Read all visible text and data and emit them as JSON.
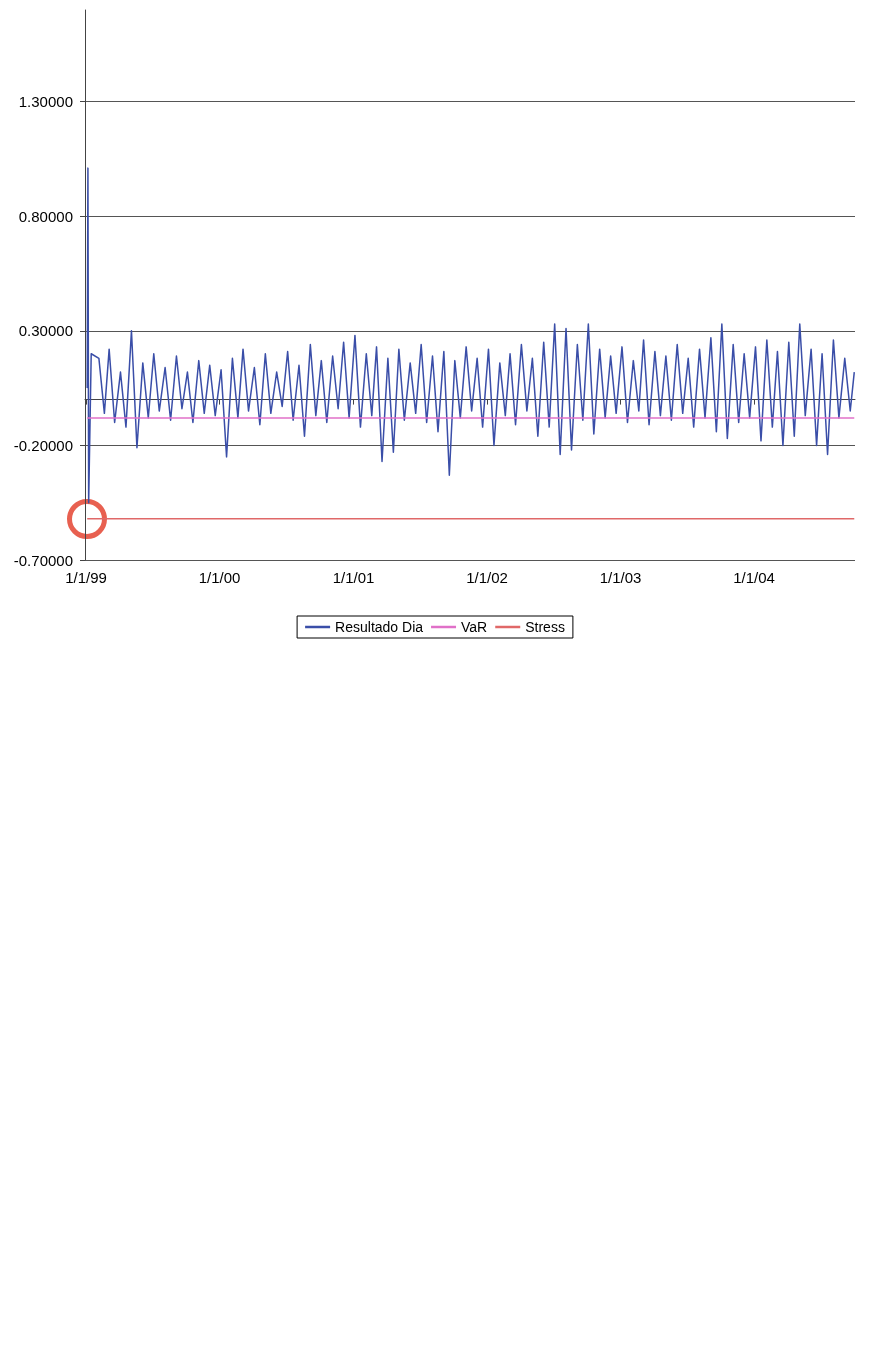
{
  "chart_data": {
    "type": "line",
    "xlim": [
      "1998-12-29",
      "2004-10-03"
    ],
    "xticks": [
      {
        "value": "1999-01-01",
        "label": "1/1/99"
      },
      {
        "value": "2000-01-01",
        "label": "1/1/00"
      },
      {
        "value": "2001-01-01",
        "label": "1/1/01"
      },
      {
        "value": "2002-01-01",
        "label": "1/1/02"
      },
      {
        "value": "2003-01-01",
        "label": "1/1/03"
      },
      {
        "value": "2004-01-01",
        "label": "1/1/04"
      }
    ],
    "ylim": [
      -0.7,
      1.7
    ],
    "yticks": [
      {
        "value": -0.7,
        "label": "-0.70000"
      },
      {
        "value": -0.2,
        "label": "-0.20000"
      },
      {
        "value": 0.3,
        "label": "0.30000"
      },
      {
        "value": 0.8,
        "label": "0.80000"
      },
      {
        "value": 1.3,
        "label": "1.30000"
      }
    ],
    "grid": "y",
    "legend": "bottom",
    "series": [
      {
        "name": "Resultado Dia",
        "color": "#3a4ea8",
        "x": [
          "1999-01-04",
          "1999-01-06",
          "1999-01-08",
          "1999-01-15",
          "1999-02-05",
          "1999-02-20",
          "1999-03-05",
          "1999-03-20",
          "1999-04-05",
          "1999-04-20",
          "1999-05-05",
          "1999-05-20",
          "1999-06-05",
          "1999-06-20",
          "1999-07-05",
          "1999-07-20",
          "1999-08-05",
          "1999-08-20",
          "1999-09-05",
          "1999-09-20",
          "1999-10-05",
          "1999-10-20",
          "1999-11-05",
          "1999-11-20",
          "1999-12-05",
          "1999-12-20",
          "2000-01-05",
          "2000-01-20",
          "2000-02-05",
          "2000-02-20",
          "2000-03-05",
          "2000-03-20",
          "2000-04-05",
          "2000-04-20",
          "2000-05-05",
          "2000-05-20",
          "2000-06-05",
          "2000-06-20",
          "2000-07-05",
          "2000-07-20",
          "2000-08-05",
          "2000-08-20",
          "2000-09-05",
          "2000-09-20",
          "2000-10-05",
          "2000-10-20",
          "2000-11-05",
          "2000-11-20",
          "2000-12-05",
          "2000-12-20",
          "2001-01-05",
          "2001-01-20",
          "2001-02-05",
          "2001-02-20",
          "2001-03-05",
          "2001-03-20",
          "2001-04-05",
          "2001-04-20",
          "2001-05-05",
          "2001-05-20",
          "2001-06-05",
          "2001-06-20",
          "2001-07-05",
          "2001-07-20",
          "2001-08-05",
          "2001-08-20",
          "2001-09-05",
          "2001-09-20",
          "2001-10-05",
          "2001-10-20",
          "2001-11-05",
          "2001-11-20",
          "2001-12-05",
          "2001-12-20",
          "2002-01-05",
          "2002-01-20",
          "2002-02-05",
          "2002-02-20",
          "2002-03-05",
          "2002-03-20",
          "2002-04-05",
          "2002-04-20",
          "2002-05-05",
          "2002-05-20",
          "2002-06-05",
          "2002-06-20",
          "2002-07-05",
          "2002-07-20",
          "2002-08-05",
          "2002-08-20",
          "2002-09-05",
          "2002-09-20",
          "2002-10-05",
          "2002-10-20",
          "2002-11-05",
          "2002-11-20",
          "2002-12-05",
          "2002-12-20",
          "2003-01-05",
          "2003-01-20",
          "2003-02-05",
          "2003-02-20",
          "2003-03-05",
          "2003-03-20",
          "2003-04-05",
          "2003-04-20",
          "2003-05-05",
          "2003-05-20",
          "2003-06-05",
          "2003-06-20",
          "2003-07-05",
          "2003-07-20",
          "2003-08-05",
          "2003-08-20",
          "2003-09-05",
          "2003-09-20",
          "2003-10-05",
          "2003-10-20",
          "2003-11-05",
          "2003-11-20",
          "2003-12-05",
          "2003-12-20",
          "2004-01-05",
          "2004-01-20",
          "2004-02-05",
          "2004-02-20",
          "2004-03-05",
          "2004-03-20",
          "2004-04-05",
          "2004-04-20",
          "2004-05-05",
          "2004-05-20",
          "2004-06-05",
          "2004-06-20",
          "2004-07-05",
          "2004-07-20",
          "2004-08-05",
          "2004-08-20",
          "2004-09-05",
          "2004-09-20",
          "2004-10-01"
        ],
        "values": [
          0.05,
          1.01,
          -0.45,
          0.2,
          0.18,
          -0.06,
          0.22,
          -0.1,
          0.12,
          -0.12,
          0.3,
          -0.21,
          0.16,
          -0.08,
          0.2,
          -0.05,
          0.14,
          -0.09,
          0.19,
          -0.04,
          0.12,
          -0.1,
          0.17,
          -0.06,
          0.15,
          -0.07,
          0.13,
          -0.25,
          0.18,
          -0.08,
          0.22,
          -0.05,
          0.14,
          -0.11,
          0.2,
          -0.06,
          0.12,
          -0.03,
          0.21,
          -0.09,
          0.15,
          -0.16,
          0.24,
          -0.07,
          0.17,
          -0.1,
          0.19,
          -0.04,
          0.25,
          -0.08,
          0.28,
          -0.12,
          0.2,
          -0.07,
          0.23,
          -0.27,
          0.18,
          -0.23,
          0.22,
          -0.09,
          0.16,
          -0.06,
          0.24,
          -0.1,
          0.19,
          -0.14,
          0.21,
          -0.33,
          0.17,
          -0.08,
          0.23,
          -0.05,
          0.18,
          -0.12,
          0.22,
          -0.2,
          0.16,
          -0.07,
          0.2,
          -0.11,
          0.24,
          -0.05,
          0.18,
          -0.16,
          0.25,
          -0.12,
          0.33,
          -0.24,
          0.31,
          -0.22,
          0.24,
          -0.09,
          0.33,
          -0.15,
          0.22,
          -0.08,
          0.19,
          -0.06,
          0.23,
          -0.1,
          0.17,
          -0.05,
          0.26,
          -0.11,
          0.21,
          -0.07,
          0.19,
          -0.09,
          0.24,
          -0.06,
          0.18,
          -0.12,
          0.22,
          -0.08,
          0.27,
          -0.14,
          0.33,
          -0.17,
          0.24,
          -0.1,
          0.2,
          -0.08,
          0.23,
          -0.18,
          0.26,
          -0.12,
          0.21,
          -0.2,
          0.25,
          -0.16,
          0.33,
          -0.07,
          0.22,
          -0.2,
          0.2,
          -0.24,
          0.26,
          -0.08,
          0.18,
          -0.05,
          0.12
        ]
      },
      {
        "name": "VaR",
        "color": "#e070c8",
        "x": [
          "1999-01-04",
          "2004-10-01"
        ],
        "values": [
          -0.08,
          -0.08
        ]
      },
      {
        "name": "Stress",
        "color": "#e06868",
        "x": [
          "1999-01-04",
          "2004-10-01"
        ],
        "values": [
          -0.52,
          -0.52
        ]
      }
    ]
  }
}
